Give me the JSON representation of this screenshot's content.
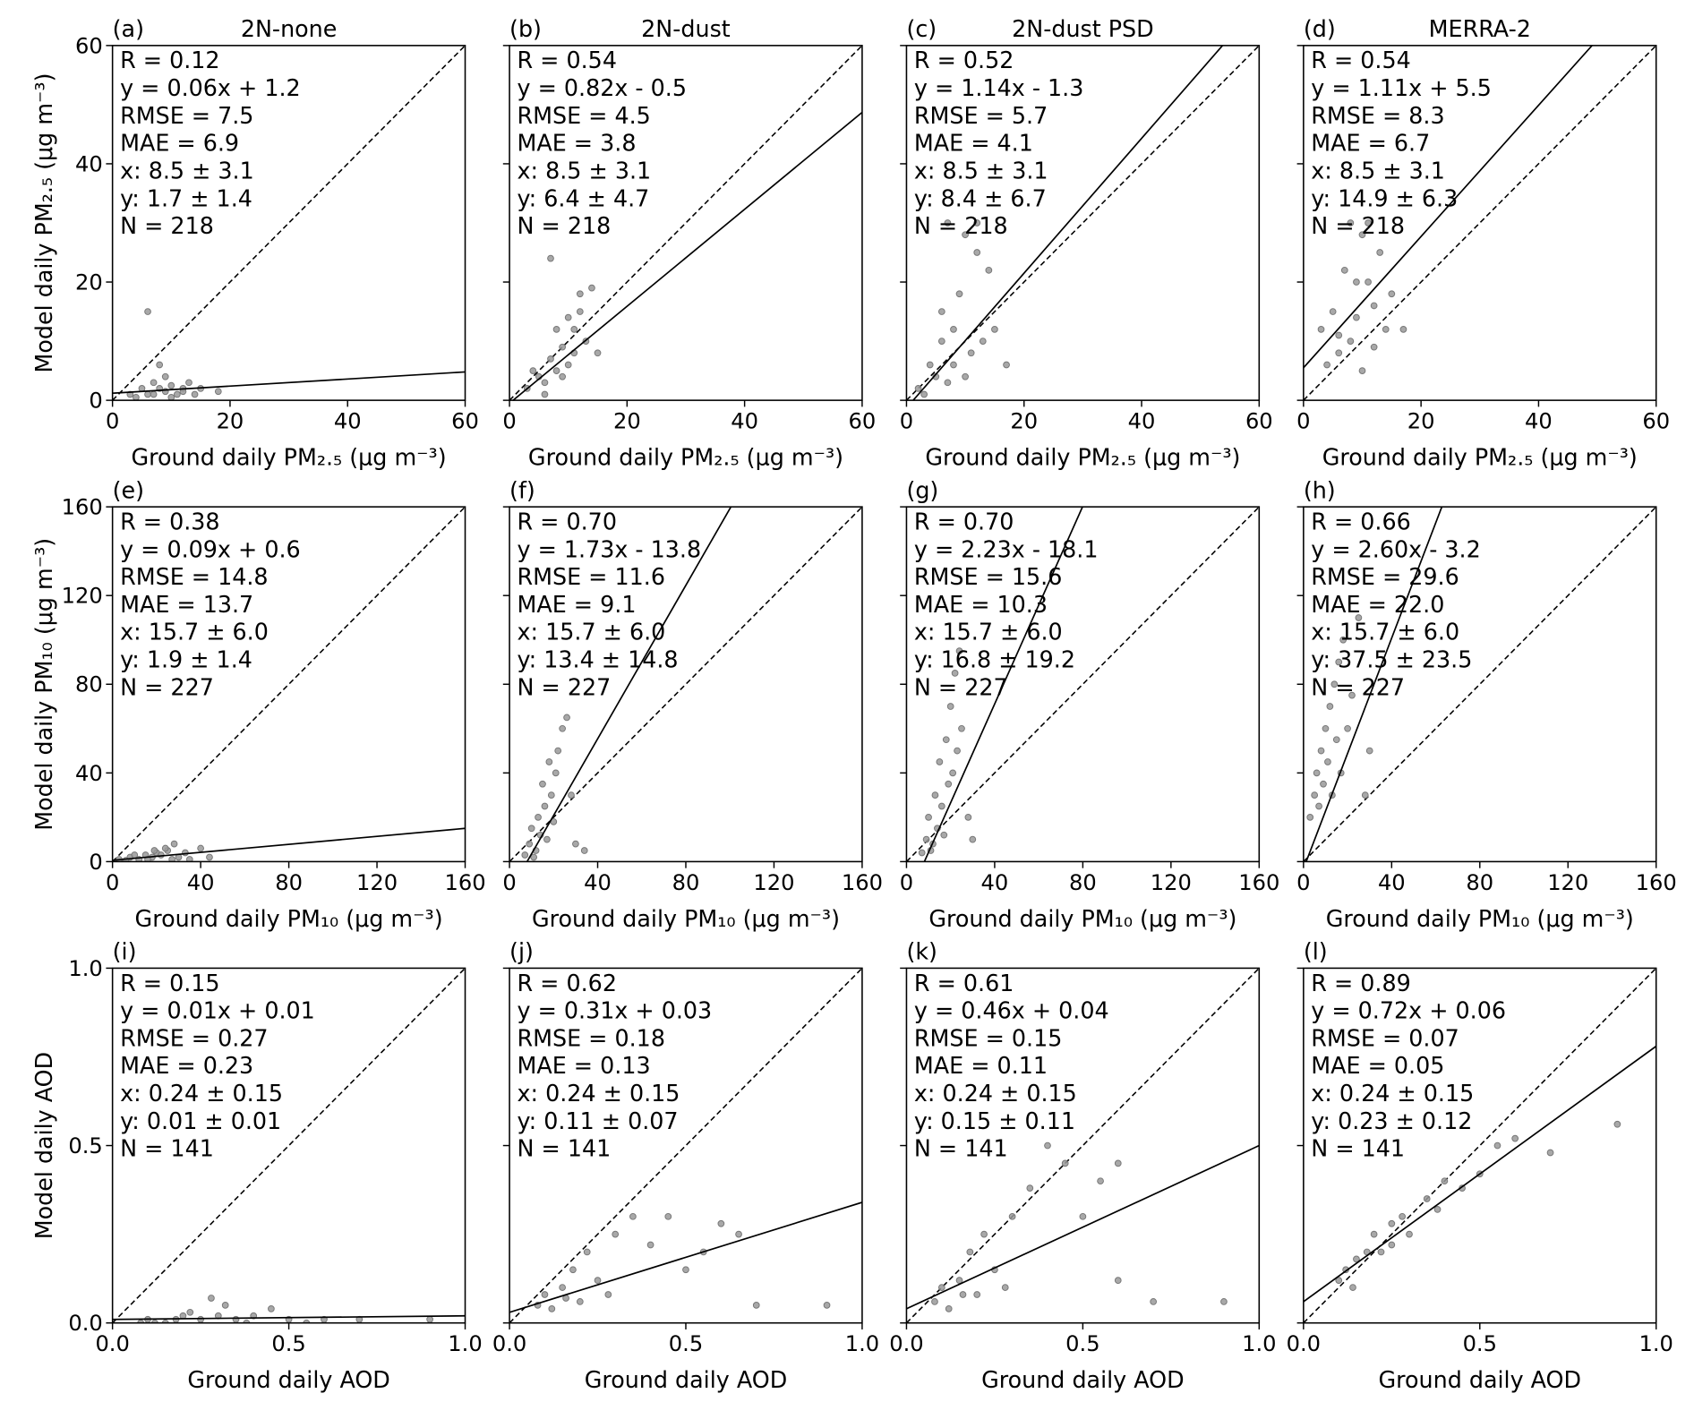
{
  "chart_data": [
    {
      "type": "scatter",
      "panel_label": "(a)",
      "title": "2N-none",
      "xlabel": "Ground daily PM₂.₅ (μg m⁻³)",
      "ylabel": "Model daily PM₂.₅ (μg m⁻³)",
      "annotations": [
        "R = 0.12",
        "y = 0.06x + 1.2",
        "RMSE = 7.5",
        "MAE = 6.9",
        "x: 8.5 ± 3.1",
        "y: 1.7 ± 1.4",
        "N = 218"
      ],
      "fit": {
        "slope": 0.06,
        "intercept": 1.2
      },
      "color": "#999999",
      "xlim": [
        0,
        60
      ],
      "ylim": [
        0,
        60
      ],
      "xticks": [
        0,
        20,
        40,
        60
      ],
      "yticks": [
        0,
        20,
        40,
        60
      ],
      "ytick_labels": true,
      "x": [
        3,
        5,
        6,
        7,
        8,
        9,
        10,
        11,
        12,
        13,
        8,
        6,
        15,
        18,
        4,
        9,
        10,
        7,
        12,
        14
      ],
      "y": [
        1,
        2,
        1,
        3,
        2,
        1.5,
        2.5,
        1,
        2,
        3,
        6,
        15,
        2,
        1.5,
        0.5,
        4,
        0.5,
        1,
        1.5,
        1
      ]
    },
    {
      "type": "scatter",
      "panel_label": "(b)",
      "title": "2N-dust",
      "xlabel": "Ground daily PM₂.₅ (μg m⁻³)",
      "annotations": [
        "R = 0.54",
        "y = 0.82x - 0.5",
        "RMSE = 4.5",
        "MAE = 3.8",
        "x: 8.5 ± 3.1",
        "y: 6.4 ± 4.7",
        "N = 218"
      ],
      "fit": {
        "slope": 0.82,
        "intercept": -0.5
      },
      "color": "#999999",
      "xlim": [
        0,
        60
      ],
      "ylim": [
        0,
        60
      ],
      "xticks": [
        0,
        20,
        40,
        60
      ],
      "yticks": [
        0,
        20,
        40,
        60
      ],
      "ytick_labels": false,
      "x": [
        3,
        5,
        6,
        7,
        8,
        9,
        10,
        11,
        12,
        13,
        14,
        12,
        7,
        8,
        9,
        10,
        15,
        6,
        11,
        4
      ],
      "y": [
        2,
        4,
        3,
        7,
        5,
        9,
        6,
        12,
        18,
        10,
        19,
        15,
        24,
        12,
        4,
        14,
        8,
        1,
        8,
        5
      ]
    },
    {
      "type": "scatter",
      "panel_label": "(c)",
      "title": "2N-dust PSD",
      "xlabel": "Ground daily PM₂.₅ (μg m⁻³)",
      "annotations": [
        "R = 0.52",
        "y = 1.14x - 1.3",
        "RMSE = 5.7",
        "MAE = 4.1",
        "x: 8.5 ± 3.1",
        "y: 8.4 ± 6.7",
        "N = 218"
      ],
      "fit": {
        "slope": 1.14,
        "intercept": -1.3
      },
      "color": "#999999",
      "xlim": [
        0,
        60
      ],
      "ylim": [
        0,
        60
      ],
      "xticks": [
        0,
        20,
        40,
        60
      ],
      "yticks": [
        0,
        20,
        40,
        60
      ],
      "ytick_labels": false,
      "x": [
        2,
        4,
        5,
        6,
        7,
        8,
        9,
        10,
        11,
        12,
        13,
        12,
        7,
        15,
        17,
        8,
        6,
        10,
        14,
        3
      ],
      "y": [
        2,
        6,
        4,
        10,
        3,
        12,
        18,
        28,
        8,
        25,
        10,
        30,
        30,
        12,
        6,
        6,
        15,
        4,
        22,
        1
      ]
    },
    {
      "type": "scatter",
      "panel_label": "(d)",
      "title": "MERRA-2",
      "xlabel": "Ground daily PM₂.₅ (μg m⁻³)",
      "annotations": [
        "R = 0.54",
        "y = 1.11x + 5.5",
        "RMSE = 8.3",
        "MAE = 6.7",
        "x: 8.5 ± 3.1",
        "y: 14.9 ± 6.3",
        "N = 218"
      ],
      "fit": {
        "slope": 1.11,
        "intercept": 5.5
      },
      "color": "#999999",
      "xlim": [
        0,
        60
      ],
      "ylim": [
        0,
        60
      ],
      "xticks": [
        0,
        20,
        40,
        60
      ],
      "yticks": [
        0,
        20,
        40,
        60
      ],
      "ytick_labels": false,
      "x": [
        3,
        5,
        6,
        7,
        8,
        9,
        10,
        11,
        12,
        13,
        14,
        8,
        6,
        10,
        15,
        17,
        4,
        9,
        12,
        11
      ],
      "y": [
        12,
        15,
        8,
        22,
        10,
        14,
        28,
        20,
        16,
        25,
        12,
        30,
        11,
        5,
        18,
        12,
        6,
        20,
        9,
        30
      ]
    },
    {
      "type": "scatter",
      "panel_label": "(e)",
      "xlabel": "Ground daily PM₁₀ (μg m⁻³)",
      "ylabel": "Model daily PM₁₀ (μg m⁻³)",
      "annotations": [
        "R = 0.38",
        "y = 0.09x + 0.6",
        "RMSE = 14.8",
        "MAE = 13.7",
        "x: 15.7 ± 6.0",
        "y: 1.9 ± 1.4",
        "N = 227"
      ],
      "fit": {
        "slope": 0.09,
        "intercept": 0.6
      },
      "color": "#999999",
      "xlim": [
        0,
        160
      ],
      "ylim": [
        0,
        160
      ],
      "xticks": [
        0,
        40,
        80,
        120,
        160
      ],
      "yticks": [
        0,
        40,
        80,
        120,
        160
      ],
      "ytick_labels": true,
      "x": [
        3,
        8,
        12,
        15,
        18,
        20,
        22,
        25,
        28,
        30,
        35,
        40,
        44,
        10,
        16,
        24,
        6,
        27,
        19,
        33
      ],
      "y": [
        1,
        2,
        1,
        3,
        2,
        4,
        3,
        5,
        8,
        2,
        1,
        6,
        2,
        3,
        1,
        6,
        0.5,
        1,
        5,
        4
      ]
    },
    {
      "type": "scatter",
      "panel_label": "(f)",
      "xlabel": "Ground daily PM₁₀ (μg m⁻³)",
      "annotations": [
        "R = 0.70",
        "y = 1.73x - 13.8",
        "RMSE = 11.6",
        "MAE = 9.1",
        "x: 15.7 ± 6.0",
        "y: 13.4 ± 14.8",
        "N = 227"
      ],
      "fit": {
        "slope": 1.73,
        "intercept": -13.8
      },
      "color": "#999999",
      "xlim": [
        0,
        160
      ],
      "ylim": [
        0,
        160
      ],
      "xticks": [
        0,
        40,
        80,
        120,
        160
      ],
      "yticks": [
        0,
        40,
        80,
        120,
        160
      ],
      "ytick_labels": false,
      "x": [
        7,
        9,
        10,
        12,
        13,
        14,
        15,
        16,
        17,
        18,
        20,
        22,
        24,
        26,
        28,
        30,
        34,
        19,
        11,
        21
      ],
      "y": [
        3,
        8,
        15,
        5,
        20,
        12,
        35,
        25,
        10,
        45,
        18,
        50,
        60,
        65,
        30,
        8,
        5,
        30,
        2,
        40
      ]
    },
    {
      "type": "scatter",
      "panel_label": "(g)",
      "xlabel": "Ground daily PM₁₀ (μg m⁻³)",
      "annotations": [
        "R = 0.70",
        "y = 2.23x - 18.1",
        "RMSE = 15.6",
        "MAE = 10.3",
        "x: 15.7 ± 6.0",
        "y: 16.8 ± 19.2",
        "N = 227"
      ],
      "fit": {
        "slope": 2.23,
        "intercept": -18.1
      },
      "color": "#999999",
      "xlim": [
        0,
        160
      ],
      "ylim": [
        0,
        160
      ],
      "xticks": [
        0,
        40,
        80,
        120,
        160
      ],
      "yticks": [
        0,
        40,
        80,
        120,
        160
      ],
      "ytick_labels": false,
      "x": [
        7,
        9,
        10,
        12,
        13,
        14,
        15,
        16,
        17,
        18,
        20,
        22,
        24,
        25,
        28,
        30,
        19,
        11,
        21,
        23
      ],
      "y": [
        4,
        10,
        20,
        8,
        30,
        15,
        45,
        25,
        12,
        55,
        70,
        85,
        95,
        60,
        20,
        10,
        35,
        5,
        40,
        50
      ]
    },
    {
      "type": "scatter",
      "panel_label": "(h)",
      "xlabel": "Ground daily PM₁₀ (μg m⁻³)",
      "annotations": [
        "R = 0.66",
        "y = 2.60x - 3.2",
        "RMSE = 29.6",
        "MAE = 22.0",
        "x: 15.7 ± 6.0",
        "y: 37.5 ± 23.5",
        "N = 227"
      ],
      "fit": {
        "slope": 2.6,
        "intercept": -3.2
      },
      "color": "#999999",
      "xlim": [
        0,
        160
      ],
      "ylim": [
        0,
        160
      ],
      "xticks": [
        0,
        40,
        80,
        120,
        160
      ],
      "yticks": [
        0,
        40,
        80,
        120,
        160
      ],
      "ytick_labels": false,
      "x": [
        3,
        5,
        6,
        7,
        8,
        9,
        10,
        11,
        12,
        13,
        14,
        15,
        16,
        17,
        18,
        20,
        22,
        25,
        28,
        30
      ],
      "y": [
        20,
        30,
        40,
        25,
        50,
        35,
        60,
        45,
        70,
        30,
        80,
        55,
        90,
        40,
        100,
        60,
        75,
        110,
        30,
        50
      ]
    },
    {
      "type": "scatter",
      "panel_label": "(i)",
      "xlabel": "Ground daily AOD",
      "ylabel": "Model daily AOD",
      "annotations": [
        "R = 0.15",
        "y = 0.01x + 0.01",
        "RMSE = 0.27",
        "MAE = 0.23",
        "x: 0.24 ± 0.15",
        "y: 0.01 ± 0.01",
        "N = 141"
      ],
      "fit": {
        "slope": 0.01,
        "intercept": 0.01
      },
      "color": "#999999",
      "xlim": [
        0,
        1
      ],
      "ylim": [
        0,
        1
      ],
      "xticks": [
        {
          "value": 0,
          "label": "0.0"
        },
        0.5,
        {
          "value": 1,
          "label": "1.0"
        }
      ],
      "yticks": [
        {
          "value": 0,
          "label": "0.0"
        },
        0.5,
        {
          "value": 1,
          "label": "1.0"
        }
      ],
      "ytick_labels": true,
      "x": [
        0.08,
        0.1,
        0.15,
        0.2,
        0.22,
        0.25,
        0.28,
        0.3,
        0.35,
        0.4,
        0.45,
        0.5,
        0.55,
        0.6,
        0.7,
        0.9,
        0.18,
        0.32,
        0.12,
        0.38
      ],
      "y": [
        0,
        0.01,
        0,
        0.02,
        0.03,
        0.01,
        0.07,
        0.02,
        0.01,
        0.02,
        0.04,
        0.01,
        0,
        0.01,
        0.01,
        0.01,
        0.01,
        0.05,
        0,
        0
      ]
    },
    {
      "type": "scatter",
      "panel_label": "(j)",
      "xlabel": "Ground daily AOD",
      "annotations": [
        "R = 0.62",
        "y = 0.31x + 0.03",
        "RMSE = 0.18",
        "MAE = 0.13",
        "x: 0.24 ± 0.15",
        "y: 0.11 ± 0.07",
        "N = 141"
      ],
      "fit": {
        "slope": 0.31,
        "intercept": 0.03
      },
      "color": "#999999",
      "xlim": [
        0,
        1
      ],
      "ylim": [
        0,
        1
      ],
      "xticks": [
        {
          "value": 0,
          "label": "0.0"
        },
        0.5,
        {
          "value": 1,
          "label": "1.0"
        }
      ],
      "yticks": [
        {
          "value": 0,
          "label": "0.0"
        },
        0.5,
        {
          "value": 1,
          "label": "1.0"
        }
      ],
      "ytick_labels": false,
      "x": [
        0.08,
        0.1,
        0.12,
        0.15,
        0.18,
        0.2,
        0.22,
        0.25,
        0.28,
        0.3,
        0.35,
        0.4,
        0.45,
        0.5,
        0.55,
        0.6,
        0.65,
        0.7,
        0.9,
        0.16
      ],
      "y": [
        0.05,
        0.08,
        0.04,
        0.1,
        0.15,
        0.06,
        0.2,
        0.12,
        0.08,
        0.25,
        0.3,
        0.22,
        0.3,
        0.15,
        0.2,
        0.28,
        0.25,
        0.05,
        0.05,
        0.07
      ]
    },
    {
      "type": "scatter",
      "panel_label": "(k)",
      "xlabel": "Ground daily AOD",
      "annotations": [
        "R = 0.61",
        "y = 0.46x + 0.04",
        "RMSE = 0.15",
        "MAE = 0.11",
        "x: 0.24 ± 0.15",
        "y: 0.15 ± 0.11",
        "N = 141"
      ],
      "fit": {
        "slope": 0.46,
        "intercept": 0.04
      },
      "color": "#999999",
      "xlim": [
        0,
        1
      ],
      "ylim": [
        0,
        1
      ],
      "xticks": [
        {
          "value": 0,
          "label": "0.0"
        },
        0.5,
        {
          "value": 1,
          "label": "1.0"
        }
      ],
      "yticks": [
        {
          "value": 0,
          "label": "0.0"
        },
        0.5,
        {
          "value": 1,
          "label": "1.0"
        }
      ],
      "ytick_labels": false,
      "x": [
        0.08,
        0.1,
        0.12,
        0.15,
        0.18,
        0.2,
        0.22,
        0.25,
        0.28,
        0.3,
        0.35,
        0.4,
        0.45,
        0.5,
        0.55,
        0.6,
        0.6,
        0.7,
        0.9,
        0.16
      ],
      "y": [
        0.06,
        0.1,
        0.04,
        0.12,
        0.2,
        0.08,
        0.25,
        0.15,
        0.1,
        0.3,
        0.38,
        0.5,
        0.45,
        0.3,
        0.4,
        0.45,
        0.12,
        0.06,
        0.06,
        0.08
      ]
    },
    {
      "type": "scatter",
      "panel_label": "(l)",
      "xlabel": "Ground daily AOD",
      "annotations": [
        "R = 0.89",
        "y = 0.72x + 0.06",
        "RMSE = 0.07",
        "MAE = 0.05",
        "x: 0.24 ± 0.15",
        "y: 0.23 ± 0.12",
        "N = 141"
      ],
      "fit": {
        "slope": 0.72,
        "intercept": 0.06
      },
      "color": "#999999",
      "xlim": [
        0,
        1
      ],
      "ylim": [
        0,
        1
      ],
      "xticks": [
        {
          "value": 0,
          "label": "0.0"
        },
        0.5,
        {
          "value": 1,
          "label": "1.0"
        }
      ],
      "yticks": [
        {
          "value": 0,
          "label": "0.0"
        },
        0.5,
        {
          "value": 1,
          "label": "1.0"
        }
      ],
      "ytick_labels": false,
      "x": [
        0.1,
        0.12,
        0.15,
        0.18,
        0.2,
        0.22,
        0.25,
        0.28,
        0.3,
        0.35,
        0.38,
        0.4,
        0.45,
        0.5,
        0.55,
        0.6,
        0.7,
        0.89,
        0.14,
        0.25
      ],
      "y": [
        0.12,
        0.15,
        0.18,
        0.2,
        0.25,
        0.2,
        0.28,
        0.3,
        0.25,
        0.35,
        0.32,
        0.4,
        0.38,
        0.42,
        0.5,
        0.52,
        0.48,
        0.56,
        0.1,
        0.22
      ]
    }
  ]
}
